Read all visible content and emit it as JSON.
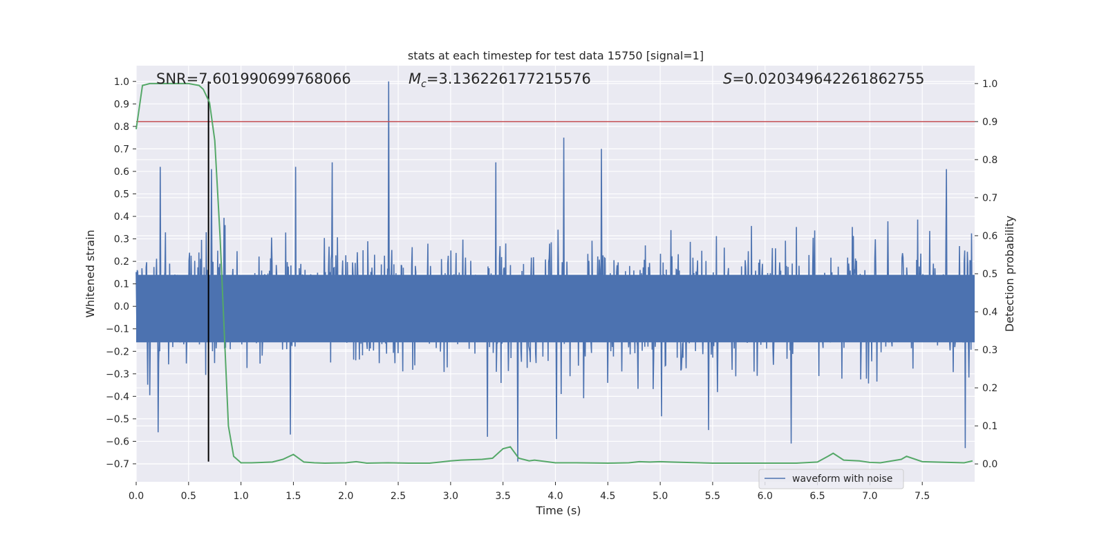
{
  "chart_data": {
    "type": "line",
    "title": "stats at each timestep for test data 15750 [signal=1]",
    "xlabel": "Time (s)",
    "ylabel": "Whitened strain",
    "y2label": "Detection probability",
    "xlim": [
      0.0,
      8.0
    ],
    "ylim": [
      -0.78,
      1.07
    ],
    "y2lim": [
      -0.047,
      1.047
    ],
    "xticks": [
      "0.0",
      "0.5",
      "1.0",
      "1.5",
      "2.0",
      "2.5",
      "3.0",
      "3.5",
      "4.0",
      "4.5",
      "5.0",
      "5.5",
      "6.0",
      "6.5",
      "7.0",
      "7.5"
    ],
    "yticks": [
      "1.0",
      "0.9",
      "0.8",
      "0.7",
      "0.6",
      "0.5",
      "0.4",
      "0.3",
      "0.2",
      "0.1",
      "0.0",
      "−0.1",
      "−0.2",
      "−0.3",
      "−0.4",
      "−0.5",
      "−0.6",
      "−0.7"
    ],
    "y2ticks": [
      "1.0",
      "0.9",
      "0.8",
      "0.7",
      "0.6",
      "0.5",
      "0.4",
      "0.3",
      "0.2",
      "0.1",
      "0.0"
    ],
    "annotations": {
      "snr": "SNR=7.601990699768066",
      "mc_symbol": "M",
      "mc_sub": "c",
      "mc_value": "=3.136226177215576",
      "s_symbol": "S",
      "s_value": "=0.020349642261862755"
    },
    "legend": {
      "label": "waveform with noise",
      "location": "lower-right"
    },
    "threshold_probability": 0.9,
    "marker_time": 0.69,
    "waveform": {
      "name": "waveform with noise",
      "sample_count": 1600,
      "max": 1.0,
      "min": -0.69,
      "typical_envelope": 0.35,
      "spikes": [
        {
          "t": 2.41,
          "v": 1.0
        },
        {
          "t": 4.08,
          "v": 0.75
        },
        {
          "t": 4.44,
          "v": 0.7
        },
        {
          "t": 3.64,
          "v": -0.69
        },
        {
          "t": 7.91,
          "v": -0.63
        },
        {
          "t": 0.72,
          "v": 0.61
        },
        {
          "t": 1.52,
          "v": 0.62
        },
        {
          "t": 0.23,
          "v": 0.62
        },
        {
          "t": 1.87,
          "v": 0.64
        },
        {
          "t": 7.73,
          "v": 0.61
        },
        {
          "t": 3.43,
          "v": 0.64
        },
        {
          "t": 6.25,
          "v": -0.61
        },
        {
          "t": 4.01,
          "v": -0.59
        },
        {
          "t": 3.35,
          "v": -0.58
        },
        {
          "t": 1.47,
          "v": -0.57
        },
        {
          "t": 0.21,
          "v": -0.56
        },
        {
          "t": 5.46,
          "v": -0.55
        }
      ]
    },
    "probability": {
      "name": "detection probability",
      "x": [
        0.0,
        0.06,
        0.13,
        0.2,
        0.3,
        0.4,
        0.5,
        0.6,
        0.64,
        0.7,
        0.75,
        0.8,
        0.84,
        0.88,
        0.93,
        1.0,
        1.1,
        1.3,
        1.4,
        1.5,
        1.6,
        1.7,
        1.8,
        2.0,
        2.1,
        2.2,
        2.4,
        2.6,
        2.8,
        3.0,
        3.1,
        3.3,
        3.4,
        3.5,
        3.57,
        3.65,
        3.75,
        3.8,
        4.0,
        4.1,
        4.2,
        4.5,
        4.7,
        4.8,
        4.9,
        5.0,
        5.1,
        5.5,
        6.0,
        6.3,
        6.5,
        6.6,
        6.65,
        6.75,
        6.9,
        7.0,
        7.1,
        7.3,
        7.35,
        7.5,
        7.9,
        7.98
      ],
      "y": [
        0.88,
        0.995,
        1.0,
        1.0,
        1.0,
        1.0,
        1.0,
        0.995,
        0.985,
        0.95,
        0.85,
        0.6,
        0.35,
        0.1,
        0.02,
        0.003,
        0.003,
        0.005,
        0.012,
        0.025,
        0.005,
        0.003,
        0.002,
        0.003,
        0.006,
        0.002,
        0.003,
        0.002,
        0.002,
        0.008,
        0.01,
        0.012,
        0.015,
        0.04,
        0.045,
        0.015,
        0.008,
        0.01,
        0.003,
        0.003,
        0.003,
        0.002,
        0.003,
        0.006,
        0.005,
        0.006,
        0.005,
        0.002,
        0.002,
        0.002,
        0.005,
        0.02,
        0.028,
        0.01,
        0.008,
        0.004,
        0.003,
        0.012,
        0.02,
        0.006,
        0.003,
        0.008
      ]
    },
    "colors": {
      "waveform": "#4c72b0",
      "probability": "#55a868",
      "threshold": "#c44e52",
      "marker": "#000000",
      "axes_bg": "#eaeaf2",
      "grid": "#ffffff"
    }
  }
}
